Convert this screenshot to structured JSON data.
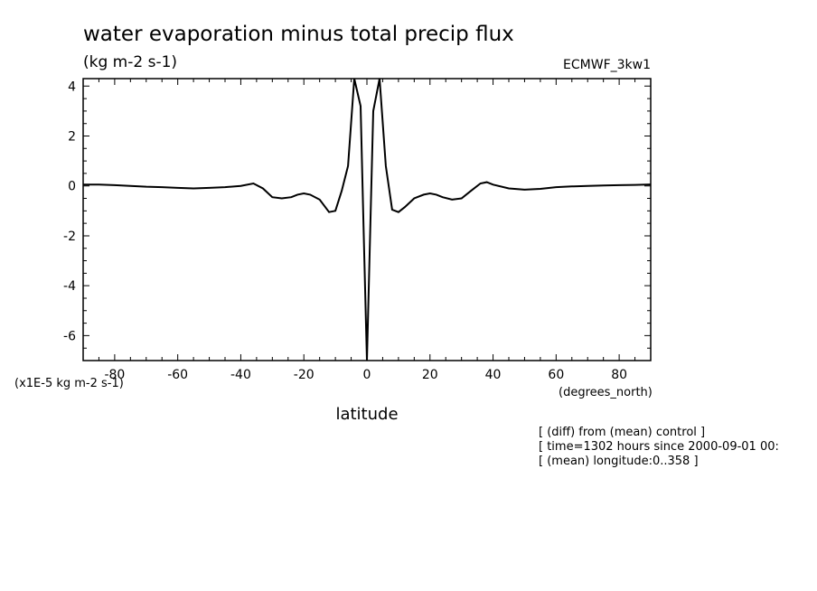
{
  "chart_data": {
    "type": "line",
    "title": "water evaporation minus total precip flux",
    "units_label": "(kg m-2 s-1)",
    "dataset_label": "ECMWF_3kw1",
    "scale_label": "(x1E-5 kg m-2 s-1)",
    "xlabel": "latitude",
    "xunits": "(degrees_north)",
    "xlim": [
      -90,
      90
    ],
    "ylim": [
      -7,
      4.3
    ],
    "xticks": [
      -80,
      -60,
      -40,
      -20,
      0,
      20,
      40,
      60,
      80
    ],
    "xtick_labels": [
      "-80",
      "-60",
      "-40",
      "-20",
      "0",
      "20",
      "40",
      "60",
      "80"
    ],
    "yticks": [
      4,
      2,
      0,
      -2,
      -4,
      -6
    ],
    "ytick_labels": [
      "4",
      "2",
      "0",
      "-2",
      "-4",
      "-6"
    ],
    "notes": [
      "[ (diff) from (mean) control ]",
      "[ time=1302 hours since 2000-09-01 00:",
      "[ (mean) longitude:0..358 ]"
    ],
    "series": [
      {
        "x": [
          -90,
          -85,
          -80,
          -75,
          -70,
          -65,
          -60,
          -55,
          -50,
          -45,
          -40,
          -36,
          -33,
          -30,
          -27,
          -24,
          -22,
          -20,
          -18,
          -15,
          -12,
          -10,
          -8,
          -6,
          -4,
          -2,
          -1,
          0,
          1,
          2,
          4,
          6,
          8,
          10,
          12,
          15,
          18,
          20,
          22,
          24,
          27,
          30,
          33,
          36,
          38,
          40,
          45,
          50,
          55,
          60,
          65,
          70,
          75,
          80,
          85,
          90
        ],
        "y": [
          0.05,
          0.05,
          0.03,
          0.0,
          -0.03,
          -0.05,
          -0.08,
          -0.1,
          -0.08,
          -0.05,
          0.0,
          0.1,
          -0.1,
          -0.45,
          -0.5,
          -0.45,
          -0.35,
          -0.3,
          -0.35,
          -0.55,
          -1.05,
          -1.0,
          -0.2,
          0.8,
          4.3,
          3.2,
          -2.0,
          -7.0,
          -2.0,
          3.0,
          4.3,
          0.8,
          -0.95,
          -1.05,
          -0.85,
          -0.5,
          -0.35,
          -0.3,
          -0.35,
          -0.45,
          -0.55,
          -0.5,
          -0.2,
          0.1,
          0.15,
          0.05,
          -0.1,
          -0.15,
          -0.12,
          -0.05,
          -0.02,
          0.0,
          0.02,
          0.03,
          0.04,
          0.06
        ]
      }
    ]
  }
}
